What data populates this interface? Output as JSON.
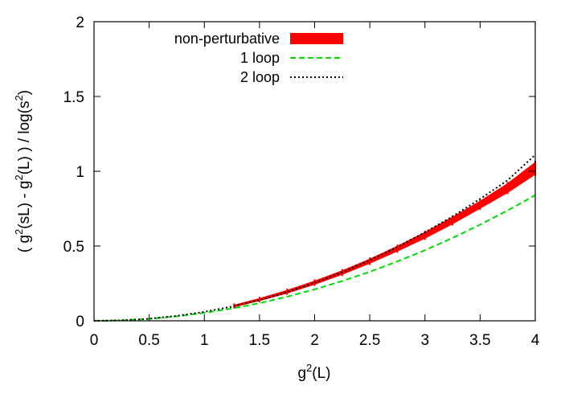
{
  "chart_data": {
    "type": "line",
    "xlabel": "g²(L)",
    "ylabel": "( g²(sL) - g²(L) ) / log(s²)",
    "xlim": [
      0,
      4
    ],
    "ylim": [
      0,
      2
    ],
    "xticks": [
      "0",
      "0.5",
      "1",
      "1.5",
      "2",
      "2.5",
      "3",
      "3.5",
      "4"
    ],
    "yticks": [
      "0",
      "0.5",
      "1",
      "1.5",
      "2"
    ],
    "grid": false,
    "legend_position": "top-left",
    "series": [
      {
        "name": "non-perturbative",
        "style": "band",
        "color": "#ff0000",
        "x": [
          1.27,
          1.5,
          1.75,
          2.0,
          2.25,
          2.5,
          2.75,
          3.0,
          3.25,
          3.5,
          3.75,
          4.0
        ],
        "y_low": [
          0.093,
          0.135,
          0.185,
          0.244,
          0.31,
          0.385,
          0.466,
          0.552,
          0.648,
          0.752,
          0.858,
          0.98
        ],
        "y_high": [
          0.105,
          0.149,
          0.204,
          0.266,
          0.335,
          0.413,
          0.499,
          0.592,
          0.693,
          0.8,
          0.918,
          1.06
        ]
      },
      {
        "name": "1 loop",
        "style": "dashed",
        "color": "#00dd00",
        "x": [
          0,
          0.25,
          0.5,
          0.75,
          1.0,
          1.25,
          1.5,
          1.75,
          2.0,
          2.25,
          2.5,
          2.75,
          3.0,
          3.25,
          3.5,
          3.75,
          4.0
        ],
        "y": [
          0,
          0.003,
          0.013,
          0.03,
          0.053,
          0.082,
          0.118,
          0.161,
          0.21,
          0.266,
          0.328,
          0.397,
          0.472,
          0.554,
          0.643,
          0.738,
          0.84
        ]
      },
      {
        "name": "2 loop",
        "style": "dotted",
        "color": "#000000",
        "x": [
          0,
          0.25,
          0.5,
          0.75,
          1.0,
          1.25,
          1.5,
          1.75,
          2.0,
          2.25,
          2.5,
          2.75,
          3.0,
          3.25,
          3.5,
          3.75,
          4.0
        ],
        "y": [
          0,
          0.003,
          0.014,
          0.033,
          0.06,
          0.095,
          0.139,
          0.192,
          0.254,
          0.325,
          0.405,
          0.494,
          0.592,
          0.698,
          0.815,
          0.94,
          1.11
        ]
      }
    ]
  }
}
